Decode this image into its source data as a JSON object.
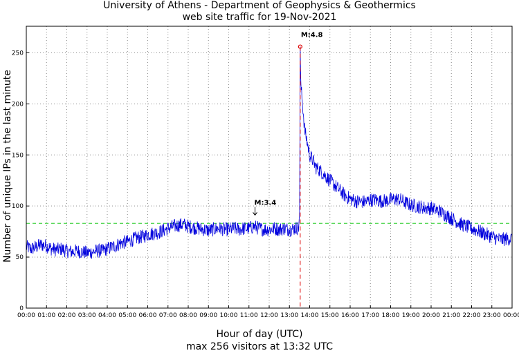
{
  "chart_data": {
    "type": "line",
    "title_line1": "University of Athens - Department of Geophysics & Geothermics",
    "title_line2": "web site traffic for 19-Nov-2021",
    "xlabel": "Hour of day (UTC)",
    "ylabel": "Number of unique IPs in the last minute",
    "footer": "max 256 visitors at 13:32 UTC",
    "xlim_hours": [
      0,
      24
    ],
    "ylim": [
      0,
      276
    ],
    "yticks": [
      0,
      50,
      100,
      150,
      200,
      250
    ],
    "xticks": [
      "00:00",
      "01:00",
      "02:00",
      "03:00",
      "04:00",
      "05:00",
      "06:00",
      "07:00",
      "08:00",
      "09:00",
      "10:00",
      "11:00",
      "12:00",
      "13:00",
      "14:00",
      "15:00",
      "16:00",
      "17:00",
      "18:00",
      "19:00",
      "20:00",
      "21:00",
      "22:00",
      "23:00",
      "00:00"
    ],
    "grid": true,
    "series": [
      {
        "name": "visitors",
        "color": "#0000dd",
        "points": [
          [
            0.0,
            60
          ],
          [
            0.25,
            58
          ],
          [
            0.5,
            60
          ],
          [
            0.75,
            62
          ],
          [
            1.0,
            61
          ],
          [
            1.25,
            58
          ],
          [
            1.5,
            57
          ],
          [
            1.75,
            58
          ],
          [
            2.0,
            56
          ],
          [
            2.25,
            55
          ],
          [
            2.5,
            56
          ],
          [
            2.75,
            55
          ],
          [
            3.0,
            54
          ],
          [
            3.25,
            55
          ],
          [
            3.5,
            56
          ],
          [
            3.75,
            56
          ],
          [
            4.0,
            58
          ],
          [
            4.25,
            60
          ],
          [
            4.5,
            62
          ],
          [
            4.75,
            64
          ],
          [
            5.0,
            65
          ],
          [
            5.25,
            67
          ],
          [
            5.5,
            69
          ],
          [
            5.75,
            70
          ],
          [
            6.0,
            72
          ],
          [
            6.25,
            73
          ],
          [
            6.5,
            74
          ],
          [
            6.75,
            76
          ],
          [
            7.0,
            78
          ],
          [
            7.25,
            80
          ],
          [
            7.5,
            81
          ],
          [
            7.75,
            82
          ],
          [
            8.0,
            80
          ],
          [
            8.25,
            79
          ],
          [
            8.5,
            78
          ],
          [
            8.75,
            77
          ],
          [
            9.0,
            76
          ],
          [
            9.25,
            77
          ],
          [
            9.5,
            78
          ],
          [
            9.75,
            77
          ],
          [
            10.0,
            77
          ],
          [
            10.25,
            78
          ],
          [
            10.5,
            77
          ],
          [
            10.75,
            78
          ],
          [
            11.0,
            78
          ],
          [
            11.25,
            80
          ],
          [
            11.5,
            78
          ],
          [
            11.75,
            77
          ],
          [
            12.0,
            77
          ],
          [
            12.25,
            78
          ],
          [
            12.5,
            77
          ],
          [
            12.75,
            78
          ],
          [
            13.0,
            77
          ],
          [
            13.25,
            78
          ],
          [
            13.45,
            79
          ],
          [
            13.5,
            90
          ],
          [
            13.52,
            180
          ],
          [
            13.533,
            256
          ],
          [
            13.56,
            220
          ],
          [
            13.6,
            210
          ],
          [
            13.67,
            195
          ],
          [
            13.75,
            175
          ],
          [
            13.85,
            165
          ],
          [
            14.0,
            150
          ],
          [
            14.15,
            145
          ],
          [
            14.3,
            138
          ],
          [
            14.5,
            135
          ],
          [
            14.75,
            130
          ],
          [
            15.0,
            125
          ],
          [
            15.25,
            120
          ],
          [
            15.5,
            115
          ],
          [
            15.75,
            110
          ],
          [
            16.0,
            107
          ],
          [
            16.25,
            105
          ],
          [
            16.5,
            104
          ],
          [
            16.75,
            104
          ],
          [
            17.0,
            106
          ],
          [
            17.25,
            106
          ],
          [
            17.5,
            105
          ],
          [
            17.75,
            105
          ],
          [
            18.0,
            106
          ],
          [
            18.25,
            107
          ],
          [
            18.5,
            106
          ],
          [
            18.75,
            103
          ],
          [
            19.0,
            101
          ],
          [
            19.25,
            100
          ],
          [
            19.5,
            99
          ],
          [
            19.75,
            98
          ],
          [
            20.0,
            98
          ],
          [
            20.25,
            96
          ],
          [
            20.5,
            94
          ],
          [
            20.75,
            91
          ],
          [
            21.0,
            88
          ],
          [
            21.25,
            85
          ],
          [
            21.5,
            82
          ],
          [
            21.75,
            80
          ],
          [
            22.0,
            78
          ],
          [
            22.25,
            76
          ],
          [
            22.5,
            74
          ],
          [
            22.75,
            72
          ],
          [
            23.0,
            70
          ],
          [
            23.25,
            68
          ],
          [
            23.5,
            67
          ],
          [
            23.75,
            68
          ],
          [
            24.0,
            68
          ]
        ],
        "noise_amplitude": 7
      }
    ],
    "reference_line": {
      "value": 83,
      "color": "#22cc22",
      "style": "dashed"
    },
    "max_marker": {
      "x_hours": 13.533,
      "value": 256,
      "color": "#dd0000"
    },
    "annotations": [
      {
        "label": "M:4.8",
        "x_hours": 13.533,
        "y_value": 256,
        "arrow": false
      },
      {
        "label": "M:3.4",
        "x_hours": 11.3,
        "y_value": 91,
        "arrow": true
      }
    ]
  }
}
